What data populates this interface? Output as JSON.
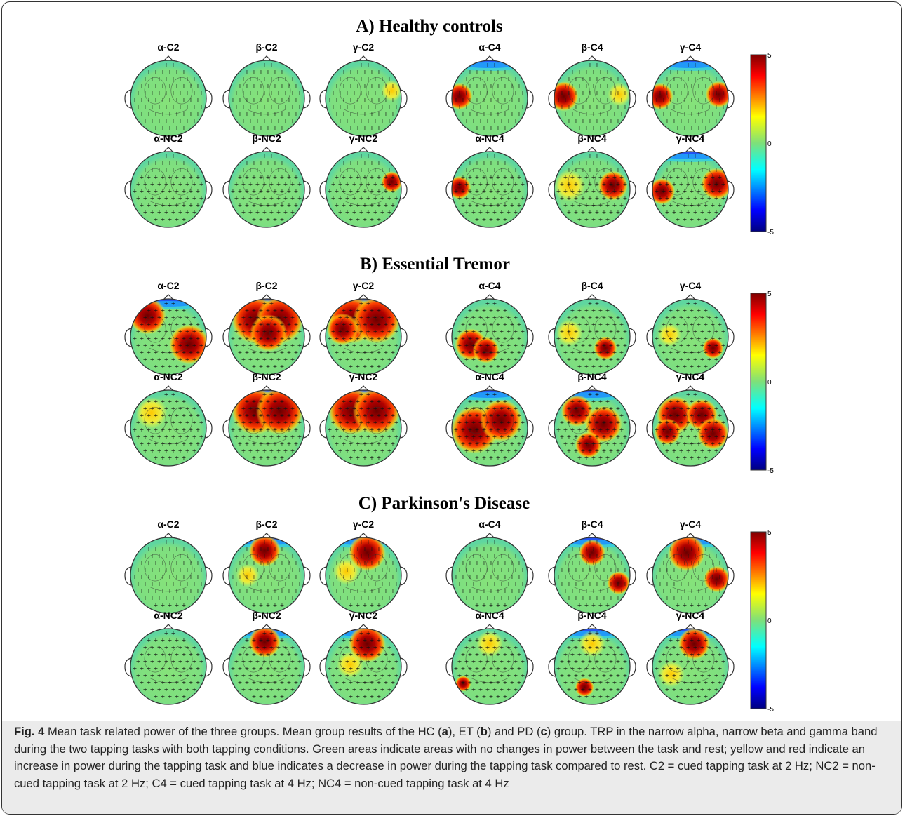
{
  "figure": {
    "sections": [
      {
        "title": "A) Healthy controls",
        "labels": [
          [
            "α-C2",
            "β-C2",
            "γ-C2",
            "α-C4",
            "β-C4",
            "γ-C4"
          ],
          [
            "α-NC2",
            "β-NC2",
            "γ-NC2",
            "α-NC4",
            "β-NC4",
            "γ-NC4"
          ]
        ],
        "colorbar": {
          "max": "5",
          "mid": "0",
          "min": "-5"
        }
      },
      {
        "title": "B) Essential Tremor",
        "labels": [
          [
            "α-C2",
            "β-C2",
            "γ-C2",
            "α-C4",
            "β-C4",
            "γ-C4"
          ],
          [
            "α-NC2",
            "β-NC2",
            "γ-NC2",
            "α-NC4",
            "β-NC4",
            "γ-NC4"
          ]
        ],
        "colorbar": {
          "max": "5",
          "mid": "0",
          "min": "-5"
        }
      },
      {
        "title": "C) Parkinson's Disease",
        "labels": [
          [
            "α-C2",
            "β-C2",
            "γ-C2",
            "α-C4",
            "β-C4",
            "γ-C4"
          ],
          [
            "α-NC2",
            "β-NC2",
            "γ-NC2",
            "α-NC4",
            "β-NC4",
            "γ-NC4"
          ]
        ],
        "colorbar": {
          "max": "5",
          "mid": "0",
          "min": "-5"
        }
      }
    ],
    "colors": {
      "positive_max": "#7f0000",
      "neutral": "#7ee07a",
      "negative_max": "#00007f"
    }
  },
  "caption": {
    "fig_label": "Fig. 4",
    "part1": " Mean task related power of the three groups. Mean group results of the HC (",
    "a": "a",
    "part2": "), ET (",
    "b": "b",
    "part3": ") and PD (",
    "c": "c",
    "part4": ") group. TRP in the narrow alpha, narrow beta and gamma band during the two tapping tasks with both tapping conditions. Green areas indicate areas with no changes in power between the task and rest; yellow and red indicate an increase in power during the tapping task and blue indicates a decrease in power during the tapping task compared to rest. C2 = cued tapping task at 2 Hz; NC2 = non-cued tapping task at 2 Hz; C4 = cued tapping task at 4 Hz; NC4 = non-cued tapping task at 4 Hz"
  }
}
